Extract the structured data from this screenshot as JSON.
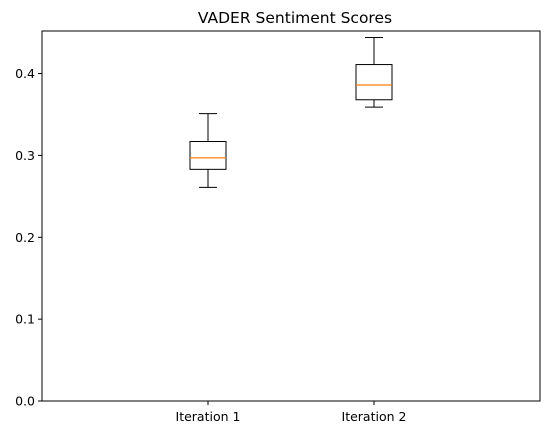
{
  "chart_data": {
    "type": "boxplot",
    "title": "VADER Sentiment Scores",
    "xlabel": "",
    "ylabel": "",
    "categories": [
      "Iteration 1",
      "Iteration 2"
    ],
    "boxes": [
      {
        "label": "Iteration 1",
        "whisker_low": 0.261,
        "q1": 0.283,
        "median": 0.297,
        "q3": 0.317,
        "whisker_high": 0.351
      },
      {
        "label": "Iteration 2",
        "whisker_low": 0.359,
        "q1": 0.368,
        "median": 0.386,
        "q3": 0.411,
        "whisker_high": 0.444
      }
    ],
    "ylim": [
      0.0,
      0.452
    ],
    "yticks": [
      "0.0",
      "0.1",
      "0.2",
      "0.3",
      "0.4"
    ],
    "grid": false,
    "colors": {
      "box": "#000000",
      "median": "#ff7f0e"
    }
  }
}
